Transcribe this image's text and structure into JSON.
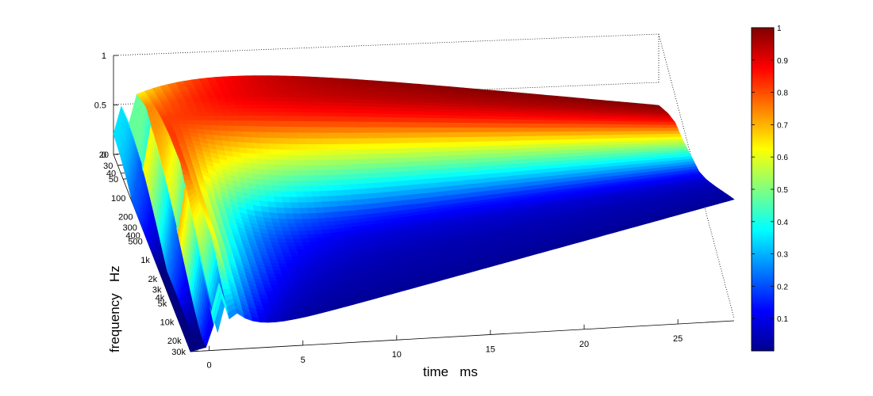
{
  "chart_data": {
    "type": "surface",
    "title": "",
    "xlabel": "time   ms",
    "ylabel": "frequency   Hz",
    "zlabel": "",
    "x_ticks": [
      0,
      5,
      10,
      15,
      20,
      25
    ],
    "x_range": [
      -1,
      28
    ],
    "y_ticks": [
      "20",
      "30",
      "40",
      "50",
      "100",
      "200",
      "300",
      "400",
      "500",
      "1k",
      "2k",
      "3k",
      "4k",
      "5k",
      "10k",
      "20k",
      "30k"
    ],
    "y_tick_values": [
      20,
      30,
      40,
      50,
      100,
      200,
      300,
      400,
      500,
      1000,
      2000,
      3000,
      4000,
      5000,
      10000,
      20000,
      30000
    ],
    "y_scale": "log",
    "z_ticks": [
      "0",
      "0.5",
      "1"
    ],
    "z_range": [
      0,
      1
    ],
    "colormap": "jet",
    "colorbar_ticks": [
      "0.1",
      "0.2",
      "0.3",
      "0.4",
      "0.5",
      "0.6",
      "0.7",
      "0.8",
      "0.9",
      "1"
    ],
    "colorbar_range": [
      0,
      1
    ],
    "colorbar_placement": "right",
    "grid": false,
    "surface_profile": {
      "frequencies_hz": [
        20,
        50,
        100,
        200,
        500,
        1000,
        2000,
        5000,
        10000,
        20000,
        30000
      ],
      "peak_value": [
        0.55,
        0.7,
        0.8,
        0.9,
        0.95,
        0.98,
        0.97,
        0.9,
        0.75,
        0.6,
        0.5
      ],
      "final_value_at_28ms": [
        1.0,
        0.95,
        0.85,
        0.6,
        0.35,
        0.15,
        0.08,
        0.05,
        0.04,
        0.03,
        0.02
      ]
    }
  }
}
